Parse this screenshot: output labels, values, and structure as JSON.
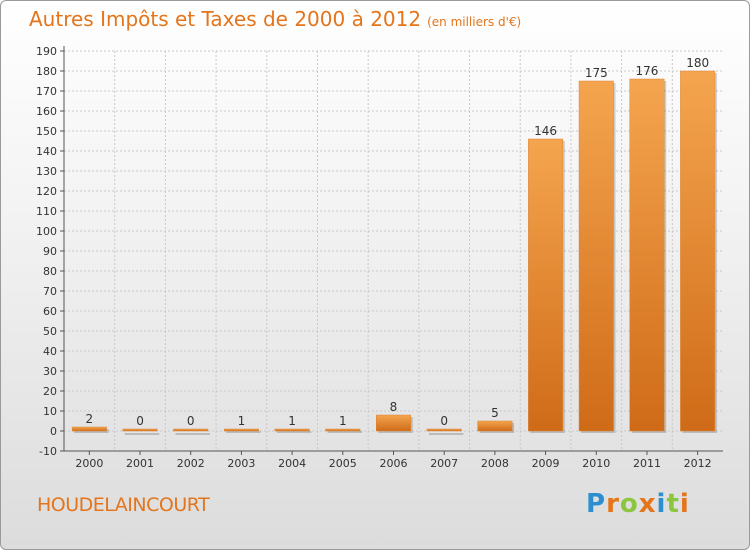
{
  "header": {
    "title": "Autres Impôts et Taxes de 2000 à 2012",
    "subtitle": "(en milliers d'€)"
  },
  "footer": {
    "commune": "HOUDELAINCOURT",
    "logo_letters": [
      "P",
      "r",
      "o",
      "x",
      "i",
      "t",
      "i"
    ],
    "logo_colors": [
      "#2e8fd0",
      "#e4751b",
      "#8cc63f",
      "#e4751b",
      "#2e8fd0",
      "#8cc63f",
      "#e4751b"
    ]
  },
  "colors": {
    "title": "#e4751b",
    "bar_light": "#f5a54f",
    "bar_dark": "#cf6b18",
    "grid": "#c8c8c8"
  },
  "chart_data": {
    "type": "bar",
    "title": "Autres Impôts et Taxes de 2000 à 2012",
    "subtitle": "(en milliers d'€)",
    "categories": [
      "2000",
      "2001",
      "2002",
      "2003",
      "2004",
      "2005",
      "2006",
      "2007",
      "2008",
      "2009",
      "2010",
      "2011",
      "2012"
    ],
    "values": [
      2,
      0,
      0,
      1,
      1,
      1,
      8,
      0,
      5,
      146,
      175,
      176,
      180
    ],
    "ylim": [
      -10,
      190
    ],
    "ytick_step": 10,
    "grid": true,
    "xlabel": "",
    "ylabel": ""
  }
}
